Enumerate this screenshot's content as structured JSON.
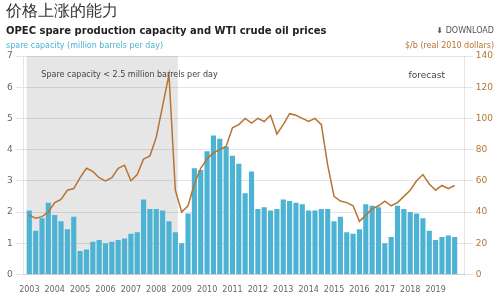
{
  "chart_data": {
    "type": "bar",
    "title": "价格上涨的能力",
    "subtitle": "OPEC spare production capacity and WTI crude oil prices",
    "ylabel": "spare capacity (million barrels per day)",
    "y2label": "$/b (real 2010 dollars)",
    "annotations": [
      "Spare capacity < 2.5 million barrels per day",
      "forecast",
      "⬇ DOWNLOAD"
    ],
    "shade": {
      "x": [
        2002.895,
        2008.85
      ],
      "color": "#e6e6e6"
    },
    "x": [
      2003.0,
      2003.25,
      2003.5,
      2003.75,
      2004.0,
      2004.25,
      2004.5,
      2004.75,
      2005.0,
      2005.25,
      2005.5,
      2005.75,
      2006.0,
      2006.25,
      2006.5,
      2006.75,
      2007.0,
      2007.25,
      2007.5,
      2007.75,
      2008.0,
      2008.25,
      2008.5,
      2008.75,
      2009.0,
      2009.25,
      2009.5,
      2009.75,
      2010.0,
      2010.25,
      2010.5,
      2010.75,
      2011.0,
      2011.25,
      2011.5,
      2011.75,
      2012.0,
      2012.25,
      2012.5,
      2012.75,
      2013.0,
      2013.25,
      2013.5,
      2013.75,
      2014.0,
      2014.25,
      2014.5,
      2014.75,
      2015.0,
      2015.25,
      2015.5,
      2015.75,
      2016.0,
      2016.25,
      2016.5,
      2016.75,
      2017.0,
      2017.25,
      2017.5,
      2017.75,
      2018.0,
      2018.25,
      2018.5,
      2018.75,
      2019.0,
      2019.25,
      2019.5,
      2019.75
    ],
    "xlim": [
      2002.78,
      2020.15
    ],
    "xticks": [
      2003,
      2004,
      2005,
      2006,
      2007,
      2008,
      2009,
      2010,
      2011,
      2012,
      2013,
      2014,
      2015,
      2016,
      2017,
      2018,
      2019
    ],
    "ylim": [
      0,
      7
    ],
    "yticks": [
      0,
      1,
      2,
      3,
      4,
      5,
      6,
      7
    ],
    "y2lim": [
      0,
      140
    ],
    "y2ticks": [
      0,
      20,
      40,
      60,
      80,
      100,
      120,
      140
    ],
    "grid": true,
    "series": [
      {
        "type": "bar",
        "color": "#4db3d4",
        "values": [
          2.05,
          1.4,
          1.8,
          2.3,
          1.9,
          1.7,
          1.45,
          1.85,
          0.75,
          0.8,
          1.05,
          1.1,
          1.0,
          1.05,
          1.1,
          1.15,
          1.3,
          1.35,
          2.4,
          2.1,
          2.1,
          2.05,
          1.7,
          1.35,
          1.0,
          1.95,
          3.4,
          3.35,
          3.95,
          4.45,
          4.35,
          4.1,
          3.8,
          3.55,
          2.6,
          3.3,
          2.1,
          2.15,
          2.05,
          2.1,
          2.4,
          2.35,
          2.3,
          2.25,
          2.05,
          2.05,
          2.1,
          2.1,
          1.7,
          1.85,
          1.35,
          1.3,
          1.45,
          2.25,
          2.2,
          2.15,
          1.0,
          1.2,
          2.2,
          2.1,
          2.0,
          1.95,
          1.8,
          1.4,
          1.1,
          1.2,
          1.25,
          1.2
        ]
      },
      {
        "type": "line",
        "color": "#b87333",
        "axis": "y2",
        "values": [
          38,
          36,
          37,
          40,
          46,
          48,
          54,
          55,
          62,
          68,
          66,
          62,
          60,
          62,
          68,
          70,
          60,
          64,
          74,
          76,
          88,
          108,
          128,
          54,
          40,
          44,
          58,
          68,
          74,
          78,
          80,
          82,
          94,
          96,
          100,
          97,
          100,
          98,
          102,
          90,
          96,
          103,
          102,
          100,
          98,
          100,
          96,
          70,
          50,
          47,
          46,
          44,
          34,
          38,
          42,
          44,
          47,
          44,
          46,
          50,
          54,
          60,
          64,
          58,
          54,
          57,
          55,
          57
        ]
      }
    ]
  }
}
